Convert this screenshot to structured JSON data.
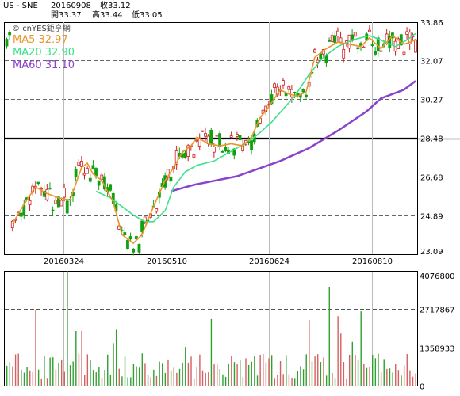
{
  "header": {
    "symbol": "US - SNE",
    "date": "20160908",
    "close": "收33.12",
    "open": "開33.37",
    "high": "高33.44",
    "low": "低33.05"
  },
  "legend": {
    "brand": "cnYES鉅亨網",
    "ma5": "MA5 32.97",
    "ma20": "MA20 32.90",
    "ma60": "MA60 31.10"
  },
  "colors": {
    "ma5": "#e8962a",
    "ma20": "#40e08c",
    "ma60": "#8844cc",
    "up": "#cc2020",
    "down": "#10a010",
    "brand": "#444444"
  },
  "chart_data": [
    {
      "type": "candlestick",
      "title": "",
      "y_ticks": [
        "33.86",
        "32.07",
        "30.27",
        "28.48",
        "26.68",
        "24.89",
        "23.09"
      ],
      "x_ticks": [
        "20160324",
        "20160510",
        "20160624",
        "20160810"
      ],
      "ylim": [
        23.09,
        33.86
      ],
      "series": [
        {
          "name": "MA5",
          "value": 32.97
        },
        {
          "name": "MA20",
          "value": 32.9
        },
        {
          "name": "MA60",
          "value": 31.1
        }
      ],
      "ma60_path": [
        [
          57,
          26.0
        ],
        [
          65,
          26.3
        ],
        [
          80,
          26.7
        ],
        [
          95,
          27.4
        ],
        [
          105,
          28.0
        ],
        [
          115,
          28.8
        ],
        [
          125,
          29.7
        ],
        [
          130,
          30.3
        ],
        [
          138,
          30.7
        ],
        [
          142,
          31.1
        ]
      ],
      "ma20_path": [
        [
          31,
          26.0
        ],
        [
          36,
          25.7
        ],
        [
          40,
          25.3
        ],
        [
          44,
          24.9
        ],
        [
          48,
          24.6
        ],
        [
          51,
          24.6
        ],
        [
          55,
          25.1
        ],
        [
          58,
          26.2
        ],
        [
          62,
          26.9
        ],
        [
          66,
          27.2
        ],
        [
          72,
          27.4
        ],
        [
          80,
          28.0
        ],
        [
          87,
          28.6
        ],
        [
          92,
          29.2
        ],
        [
          96,
          29.8
        ],
        [
          100,
          30.4
        ],
        [
          105,
          31.4
        ],
        [
          110,
          32.2
        ],
        [
          115,
          32.7
        ],
        [
          120,
          33.0
        ],
        [
          126,
          33.2
        ],
        [
          130,
          33.0
        ],
        [
          135,
          32.7
        ],
        [
          139,
          33.0
        ],
        [
          142,
          33.3
        ]
      ],
      "ma5_path": [
        [
          2,
          24.5
        ],
        [
          6,
          25.4
        ],
        [
          10,
          26.2
        ],
        [
          14,
          25.9
        ],
        [
          18,
          25.7
        ],
        [
          22,
          25.6
        ],
        [
          26,
          27.1
        ],
        [
          28,
          27.3
        ],
        [
          30,
          26.8
        ],
        [
          33,
          26.5
        ],
        [
          37,
          25.5
        ],
        [
          40,
          24.0
        ],
        [
          44,
          23.6
        ],
        [
          47,
          24.0
        ],
        [
          51,
          25.3
        ],
        [
          55,
          26.5
        ],
        [
          58,
          27.1
        ],
        [
          61,
          27.8
        ],
        [
          64,
          28.1
        ],
        [
          66,
          28.5
        ],
        [
          70,
          28.2
        ],
        [
          74,
          28.1
        ],
        [
          78,
          28.2
        ],
        [
          82,
          28.1
        ],
        [
          85,
          28.5
        ],
        [
          88,
          29.4
        ],
        [
          91,
          29.9
        ],
        [
          95,
          30.7
        ],
        [
          98,
          30.5
        ],
        [
          101,
          30.4
        ],
        [
          104,
          30.6
        ],
        [
          107,
          32.2
        ],
        [
          111,
          32.6
        ],
        [
          115,
          32.9
        ],
        [
          119,
          32.8
        ],
        [
          123,
          32.7
        ],
        [
          126,
          33.1
        ],
        [
          130,
          32.6
        ],
        [
          134,
          33.2
        ],
        [
          138,
          32.8
        ],
        [
          142,
          33.0
        ]
      ],
      "volume_ticks": [
        "4076800",
        "2717867",
        "1358933",
        "0"
      ],
      "volume_ylim": [
        0,
        4076800
      ]
    }
  ]
}
